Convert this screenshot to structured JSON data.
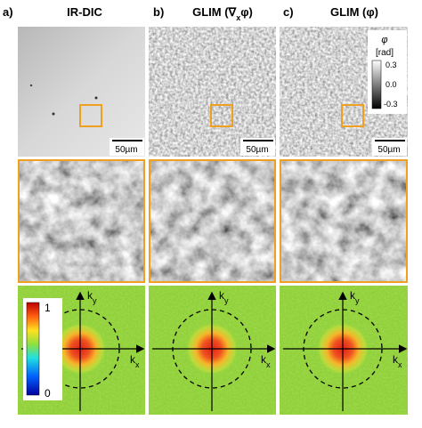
{
  "panels": [
    {
      "label": "a)",
      "title": {
        "text": "IR-DIC"
      },
      "scale_bar": "50µm",
      "fft_colorbar": {
        "max": "1",
        "min": "0"
      },
      "axes": {
        "ky": {
          "base": "k",
          "sub": "y"
        },
        "kx": {
          "base": "k",
          "sub": "x"
        }
      }
    },
    {
      "label": "b)",
      "title": {
        "text": "GLIM (∇",
        "sub": "x",
        "tail": "φ)"
      },
      "scale_bar": "50µm",
      "axes": {
        "ky": {
          "base": "k",
          "sub": "y"
        },
        "kx": {
          "base": "k",
          "sub": "x"
        }
      }
    },
    {
      "label": "c)",
      "title": {
        "text": "GLIM (φ)"
      },
      "scale_bar": "50µm",
      "phase_colorbar": {
        "title": "φ",
        "unit": "[rad]",
        "ticks": [
          "0.3",
          "0.0",
          "-0.3"
        ]
      },
      "axes": {
        "ky": {
          "base": "k",
          "sub": "y"
        },
        "kx": {
          "base": "k",
          "sub": "x"
        }
      }
    }
  ]
}
